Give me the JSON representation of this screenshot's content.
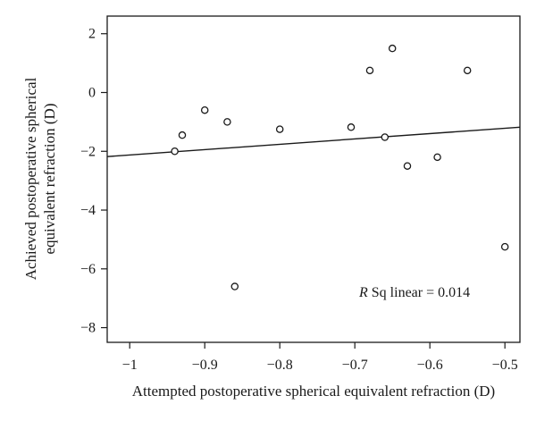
{
  "chart_data": {
    "type": "scatter",
    "title": "",
    "xlabel": "Attempted postoperative spherical equivalent refraction (D)",
    "ylabel_lines": [
      "Achieved postoperative spherical",
      "equivalent refraction (D)"
    ],
    "xlim": [
      -1.03,
      -0.48
    ],
    "ylim": [
      -8.5,
      2.6
    ],
    "xticks": [
      -1,
      -0.9,
      -0.8,
      -0.7,
      -0.6,
      -0.5
    ],
    "xtick_labels": [
      "−1",
      "−0.9",
      "−0.8",
      "−0.7",
      "−0.6",
      "−0.5"
    ],
    "yticks": [
      2,
      0,
      -2,
      -4,
      -6,
      -8
    ],
    "ytick_labels": [
      "2",
      "0",
      "−2",
      "−4",
      "−6",
      "−8"
    ],
    "grid": false,
    "series": [
      {
        "points": [
          {
            "x": -0.94,
            "y": -2.0
          },
          {
            "x": -0.93,
            "y": -1.45
          },
          {
            "x": -0.9,
            "y": -0.6
          },
          {
            "x": -0.87,
            "y": -1.0
          },
          {
            "x": -0.86,
            "y": -6.6
          },
          {
            "x": -0.8,
            "y": -1.25
          },
          {
            "x": -0.705,
            "y": -1.18
          },
          {
            "x": -0.68,
            "y": 0.75
          },
          {
            "x": -0.66,
            "y": -1.52
          },
          {
            "x": -0.65,
            "y": 1.5
          },
          {
            "x": -0.63,
            "y": -2.5
          },
          {
            "x": -0.59,
            "y": -2.2
          },
          {
            "x": -0.55,
            "y": 0.75
          },
          {
            "x": -0.5,
            "y": -5.25
          }
        ]
      }
    ],
    "fit_line": {
      "x": [
        -1.03,
        -0.48
      ],
      "y": [
        -2.18,
        -1.18
      ]
    },
    "annotation": {
      "italic": "R",
      "text": " Sq linear = 0.014"
    }
  }
}
